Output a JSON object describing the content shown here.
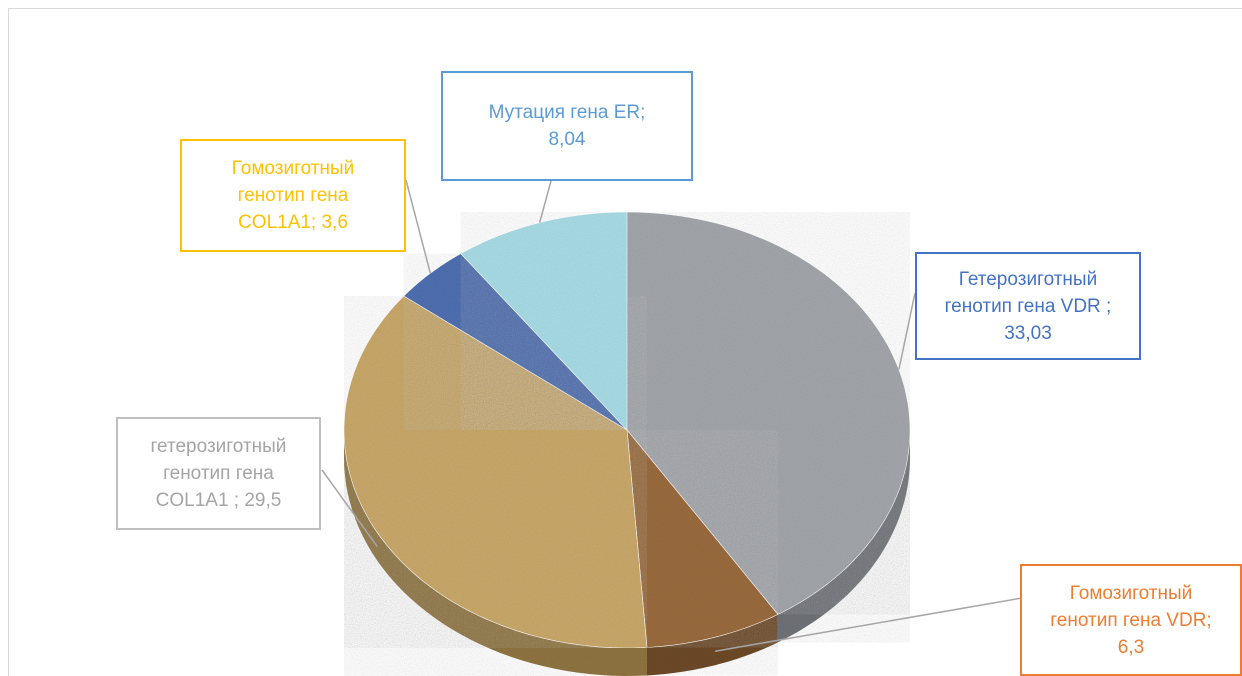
{
  "chart_data": {
    "type": "pie",
    "title": "",
    "slices": [
      {
        "label": "Гетерозиготный генотип гена VDR",
        "value": 33.03,
        "display": "Гетерозиготный\nгенотип гена VDR ;\n33,03",
        "fill": "#a3a6ab",
        "side": "#6f7277",
        "border": "#4472c4",
        "text_color": "#4472c4"
      },
      {
        "label": "Гомозиготный генотип гена VDR",
        "value": 6.3,
        "display": "Гомозиготный\nгенотип гена VDR;\n6,3",
        "fill": "#9a6b3e",
        "side": "#6d4a28",
        "border": "#ed7d31",
        "text_color": "#ed7d31"
      },
      {
        "label": "гетерозиготный генотип гена COL1A1",
        "value": 29.5,
        "display": "гетерозиготный\nгенотип гена\nCOL1A1 ; 29,5",
        "fill": "#c9a86a",
        "side": "#8f7441",
        "border": "#bfbfbf",
        "text_color": "#a5a5a5"
      },
      {
        "label": "Гомозиготный генотип гена COL1A1",
        "value": 3.6,
        "display": "Гомозиготный\nгенотип гена\nCOL1A1; 3,6",
        "fill": "#4f6fb0",
        "side": "#34508a",
        "border": "#ffc000",
        "text_color": "#ffc000"
      },
      {
        "label": "Мутация гена ER",
        "value": 8.04,
        "display": "Мутация гена ER;\n8,04",
        "fill": "#a8dce6",
        "side": "#7cb7c4",
        "border": "#5b9bd5",
        "text_color": "#5b9bd5"
      }
    ],
    "legend": "none",
    "style": "3d-pie"
  }
}
